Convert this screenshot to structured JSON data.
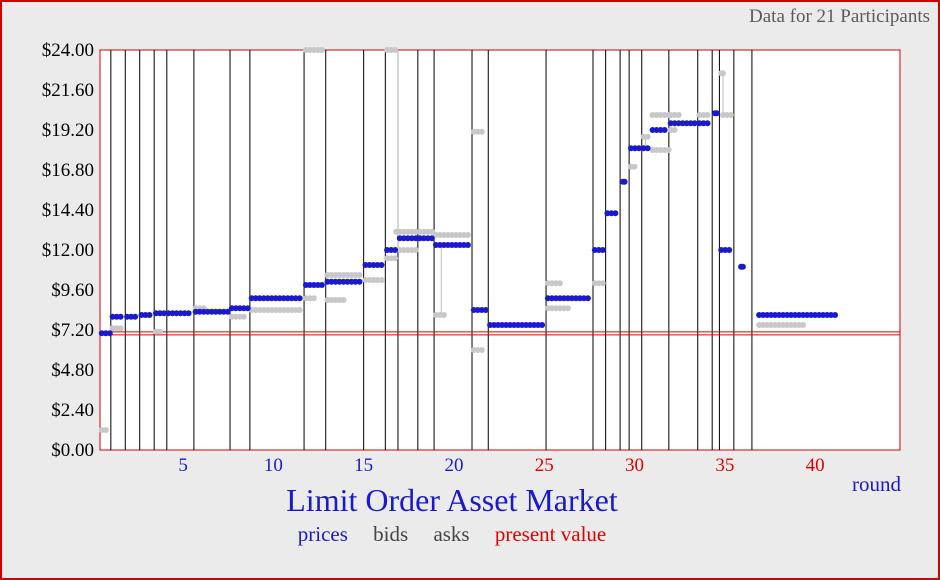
{
  "header": {
    "participants_text": "Data for 21  Participants"
  },
  "chart_data": {
    "type": "scatter",
    "title": "Limit Order Asset Market",
    "xlabel": "round",
    "x_ticks": [
      {
        "label": "5",
        "x": 5,
        "color": "#1a1acc"
      },
      {
        "label": "10",
        "x": 10,
        "color": "#1a1acc"
      },
      {
        "label": "15",
        "x": 15,
        "color": "#1a1acc"
      },
      {
        "label": "20",
        "x": 20,
        "color": "#1a1acc"
      },
      {
        "label": "25",
        "x": 25,
        "color": "#e00000"
      },
      {
        "label": "30",
        "x": 30,
        "color": "#e00000"
      },
      {
        "label": "35",
        "x": 35,
        "color": "#e00000"
      },
      {
        "label": "40",
        "x": 40,
        "color": "#e00000"
      }
    ],
    "y_ticks": [
      "$0.00",
      "$2.40",
      "$4.80",
      "$7.20",
      "$9.60",
      "$12.00",
      "$14.40",
      "$16.80",
      "$19.20",
      "$21.60",
      "$24.00"
    ],
    "y_tick_values": [
      0,
      2.4,
      4.8,
      7.2,
      9.6,
      12,
      14.4,
      16.8,
      19.2,
      21.6,
      24
    ],
    "xlim": [
      0.4,
      44.7
    ],
    "ylim": [
      0,
      24
    ],
    "present_value": 7.0,
    "round_boundaries": [
      1.0,
      1.8,
      2.6,
      3.4,
      4.1,
      5.6,
      7.6,
      8.7,
      11.7,
      12.9,
      15.0,
      16.2,
      16.9,
      18.0,
      18.9,
      21.0,
      21.9,
      25.1,
      27.7,
      28.4,
      29.2,
      29.7,
      30.4,
      31.9,
      33.5,
      34.3,
      34.7,
      35.5,
      36.5
    ],
    "legend": {
      "prices": "prices",
      "bids": "bids",
      "asks": "asks",
      "present_value": "present value",
      "colors": {
        "prices": "#1a1acc",
        "bids": "#c8c8c8",
        "asks": "#c8c8c8",
        "present_value": "#e00000"
      }
    },
    "prices": [
      {
        "x1": 0.5,
        "x2": 1.0,
        "y": 7.0
      },
      {
        "x1": 1.1,
        "x2": 1.7,
        "y": 8.0
      },
      {
        "x1": 1.9,
        "x2": 2.5,
        "y": 8.0
      },
      {
        "x1": 2.7,
        "x2": 3.3,
        "y": 8.1
      },
      {
        "x1": 3.5,
        "x2": 4.0,
        "y": 8.2
      },
      {
        "x1": 4.2,
        "x2": 5.5,
        "y": 8.2
      },
      {
        "x1": 5.7,
        "x2": 7.5,
        "y": 8.3
      },
      {
        "x1": 7.7,
        "x2": 8.6,
        "y": 8.5
      },
      {
        "x1": 8.8,
        "x2": 11.6,
        "y": 9.1
      },
      {
        "x1": 11.8,
        "x2": 12.8,
        "y": 9.9
      },
      {
        "x1": 13.0,
        "x2": 14.9,
        "y": 10.1
      },
      {
        "x1": 15.1,
        "x2": 16.1,
        "y": 11.1
      },
      {
        "x1": 16.3,
        "x2": 16.8,
        "y": 12.0
      },
      {
        "x1": 17.0,
        "x2": 18.8,
        "y": 12.7
      },
      {
        "x1": 19.0,
        "x2": 20.9,
        "y": 12.3
      },
      {
        "x1": 21.1,
        "x2": 21.8,
        "y": 8.4
      },
      {
        "x1": 22.0,
        "x2": 25.0,
        "y": 7.5
      },
      {
        "x1": 25.2,
        "x2": 27.6,
        "y": 9.1
      },
      {
        "x1": 27.8,
        "x2": 28.3,
        "y": 12.0
      },
      {
        "x1": 28.5,
        "x2": 29.1,
        "y": 14.2
      },
      {
        "x1": 29.35,
        "x2": 29.45,
        "y": 16.1
      },
      {
        "x1": 29.8,
        "x2": 30.3,
        "y": 18.1
      },
      {
        "x1": 30.5,
        "x2": 30.8,
        "y": 18.1
      },
      {
        "x1": 31.0,
        "x2": 31.8,
        "y": 19.2
      },
      {
        "x1": 32.0,
        "x2": 33.4,
        "y": 19.6
      },
      {
        "x1": 33.6,
        "x2": 34.2,
        "y": 19.6
      },
      {
        "x1": 34.45,
        "x2": 34.55,
        "y": 20.2
      },
      {
        "x1": 34.8,
        "x2": 35.4,
        "y": 12.0
      },
      {
        "x1": 35.9,
        "x2": 36.0,
        "y": 11.0
      },
      {
        "x1": 36.9,
        "x2": 41.2,
        "y": 8.1
      }
    ],
    "bids": [
      {
        "x1": 0.5,
        "x2": 0.9,
        "y": 1.2
      },
      {
        "x1": 3.5,
        "x2": 3.8,
        "y": 7.1
      },
      {
        "x1": 7.7,
        "x2": 8.4,
        "y": 8.0
      },
      {
        "x1": 8.8,
        "x2": 11.5,
        "y": 8.4
      },
      {
        "x1": 11.8,
        "x2": 12.3,
        "y": 9.1
      },
      {
        "x1": 13.0,
        "x2": 14.0,
        "y": 9.0
      },
      {
        "x1": 15.1,
        "x2": 16.1,
        "y": 10.2
      },
      {
        "x1": 16.3,
        "x2": 16.8,
        "y": 11.5
      },
      {
        "x1": 17.0,
        "x2": 18.0,
        "y": 12.0
      },
      {
        "x1": 19.0,
        "x2": 19.6,
        "y": 8.1
      },
      {
        "x1": 21.1,
        "x2": 21.6,
        "y": 6.0
      },
      {
        "x1": 25.2,
        "x2": 26.5,
        "y": 8.5
      },
      {
        "x1": 27.8,
        "x2": 28.3,
        "y": 10.0
      },
      {
        "x1": 29.8,
        "x2": 30.0,
        "y": 17.0
      },
      {
        "x1": 31.0,
        "x2": 32.0,
        "y": 18.0
      },
      {
        "x1": 32.0,
        "x2": 32.3,
        "y": 19.2
      },
      {
        "x1": 36.9,
        "x2": 39.5,
        "y": 7.5
      }
    ],
    "asks": [
      {
        "x1": 1.1,
        "x2": 1.6,
        "y": 7.3
      },
      {
        "x1": 3.5,
        "x2": 3.8,
        "y": 8.2
      },
      {
        "x1": 5.7,
        "x2": 6.3,
        "y": 8.5
      },
      {
        "x1": 11.8,
        "x2": 12.8,
        "y": 24.0
      },
      {
        "x1": 13.0,
        "x2": 14.9,
        "y": 10.5
      },
      {
        "x1": 16.3,
        "x2": 16.8,
        "y": 24.0
      },
      {
        "x1": 16.8,
        "x2": 18.8,
        "y": 13.1
      },
      {
        "x1": 19.0,
        "x2": 20.9,
        "y": 12.9
      },
      {
        "x1": 21.1,
        "x2": 21.6,
        "y": 19.1
      },
      {
        "x1": 25.2,
        "x2": 26.0,
        "y": 10.0
      },
      {
        "x1": 30.5,
        "x2": 30.8,
        "y": 18.8
      },
      {
        "x1": 31.0,
        "x2": 32.0,
        "y": 20.1
      },
      {
        "x1": 32.0,
        "x2": 32.6,
        "y": 20.1
      },
      {
        "x1": 33.6,
        "x2": 34.2,
        "y": 20.1
      },
      {
        "x1": 34.9,
        "x2": 35.4,
        "y": 20.1
      },
      {
        "x1": 34.8,
        "x2": 34.9,
        "y": 22.6
      }
    ],
    "spread_lines": [
      {
        "x": 16.9,
        "y1": 12.0,
        "y2": 24.0
      },
      {
        "x": 19.3,
        "y1": 8.1,
        "y2": 12.3
      },
      {
        "x": 34.9,
        "y1": 20.1,
        "y2": 22.6
      },
      {
        "x": 30.6,
        "y1": 18.1,
        "y2": 18.8
      }
    ]
  }
}
